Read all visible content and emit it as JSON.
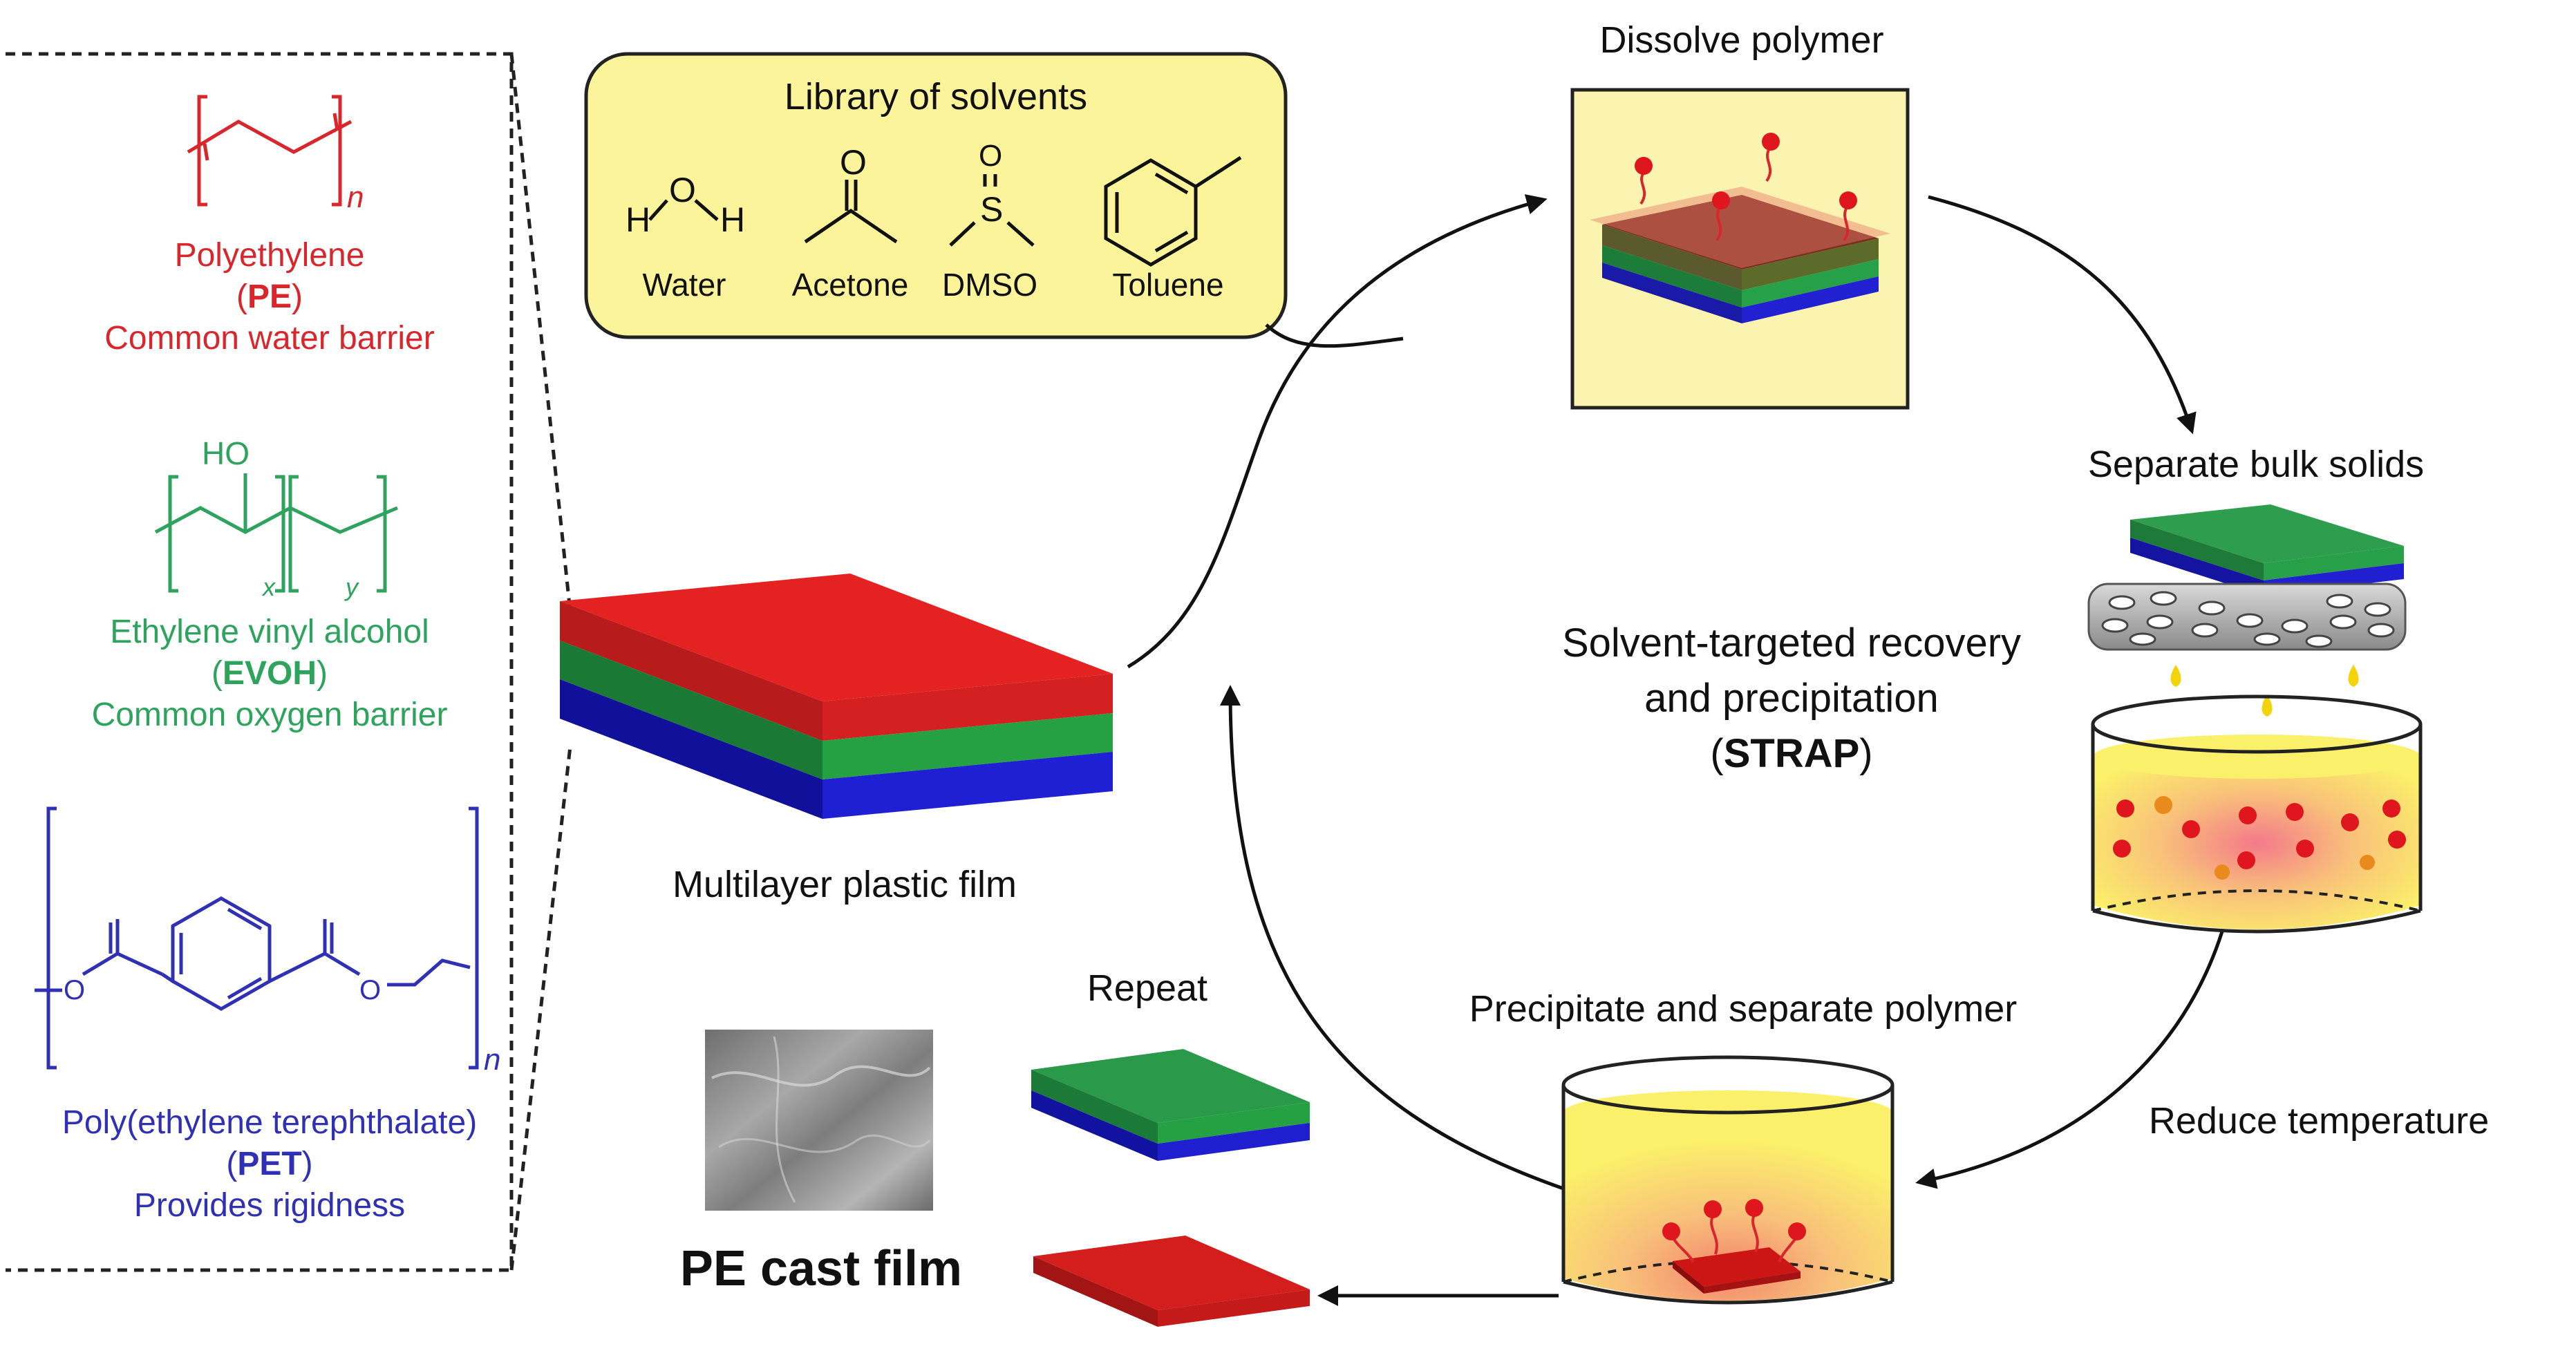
{
  "colors": {
    "pe": "#d9262c",
    "evoh": "#2ea35e",
    "pet": "#3030b4",
    "solvent_box": "#fbf49a",
    "arrow": "#111111"
  },
  "polymers": {
    "pe": {
      "name": "Polyethylene",
      "abbr": "PE",
      "role": "Common water barrier",
      "subscript": "n"
    },
    "evoh": {
      "name": "Ethylene vinyl alcohol",
      "abbr": "EVOH",
      "role": "Common oxygen barrier",
      "group": "HO",
      "sub_x": "x",
      "sub_y": "y"
    },
    "pet": {
      "name": "Poly(ethylene terephthalate)",
      "abbr": "PET",
      "role": "Provides rigidness",
      "subscript": "n",
      "atom_o": "O"
    }
  },
  "solvents": {
    "title": "Library of solvents",
    "items": [
      {
        "label": "Water",
        "atom_h": "H",
        "atom_o": "O"
      },
      {
        "label": "Acetone",
        "atom_o": "O"
      },
      {
        "label": "DMSO",
        "atom_o": "O",
        "atom_s": "S"
      },
      {
        "label": "Toluene"
      }
    ]
  },
  "film_label": "Multilayer plastic film",
  "center": {
    "line1": "Solvent-targeted recovery",
    "line2": "and precipitation",
    "paren_open": "(",
    "acronym": "STRAP",
    "paren_close": ")"
  },
  "steps": {
    "dissolve": "Dissolve polymer",
    "separate": "Separate bulk solids",
    "reduce": "Reduce temperature",
    "precipitate": "Precipitate and separate polymer",
    "repeat": "Repeat"
  },
  "cast_film_label": "PE cast film"
}
